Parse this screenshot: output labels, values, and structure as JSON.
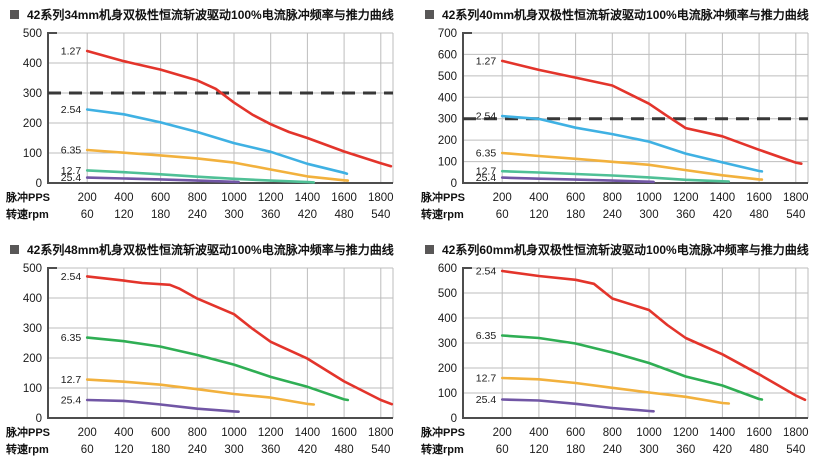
{
  "x_axis": {
    "row1_label": "脉冲PPS",
    "row2_label": "转速rpm",
    "pps_ticks": [
      200,
      400,
      600,
      800,
      1000,
      1200,
      1400,
      1600,
      1800
    ],
    "rpm_ticks": [
      60,
      120,
      180,
      240,
      300,
      360,
      420,
      480,
      540
    ]
  },
  "style": {
    "background": "#ffffff",
    "grid_color": "#bdbdbd",
    "axis_color": "#4d4d4d",
    "dashed_color": "#383838",
    "text_color": "#1a1a1a",
    "bullet_color": "#595757",
    "red": "#e3342b",
    "blue": "#3fb1e3",
    "yellow": "#f2b13d",
    "teal": "#4fc096",
    "green": "#2fae54",
    "purple": "#7156a5"
  },
  "chart_data": [
    {
      "type": "line",
      "title": "42系列34mm机身双极性恒流斩波驱动100%电流脉冲频率与推力曲线",
      "ylim": [
        0,
        500
      ],
      "ytick_step": 100,
      "rated_line_y": 300,
      "grid": "on",
      "series": [
        {
          "name": "1.27",
          "color": "#e3342b",
          "x": [
            200,
            400,
            600,
            800,
            900,
            1000,
            1100,
            1200,
            1300,
            1400,
            1600,
            1800,
            1855
          ],
          "y": [
            440,
            406,
            378,
            342,
            314,
            268,
            228,
            196,
            170,
            150,
            105,
            66,
            56
          ]
        },
        {
          "name": "2.54",
          "color": "#3fb1e3",
          "x": [
            200,
            400,
            600,
            800,
            1000,
            1200,
            1400,
            1600,
            1615
          ],
          "y": [
            245,
            229,
            202,
            170,
            133,
            104,
            64,
            34,
            31
          ]
        },
        {
          "name": "6.35",
          "color": "#f2b13d",
          "x": [
            200,
            400,
            600,
            800,
            1000,
            1200,
            1400,
            1600,
            1620
          ],
          "y": [
            110,
            101,
            92,
            82,
            68,
            45,
            22,
            9,
            8
          ]
        },
        {
          "name": "12.7",
          "color": "#4fc096",
          "x": [
            200,
            400,
            600,
            800,
            1000,
            1200,
            1400,
            1435
          ],
          "y": [
            42,
            36,
            29,
            21,
            14,
            8,
            3,
            2
          ]
        },
        {
          "name": "25.4",
          "color": "#7156a5",
          "x": [
            200,
            400,
            600,
            800,
            1000,
            1025
          ],
          "y": [
            18,
            15,
            12,
            8,
            4,
            3
          ]
        }
      ]
    },
    {
      "type": "line",
      "title": "42系列40mm机身双极性恒流斩波驱动100%电流脉冲频率与推力曲线",
      "ylim": [
        0,
        700
      ],
      "ytick_step": 100,
      "rated_line_y": 300,
      "grid": "on",
      "series": [
        {
          "name": "1.27",
          "color": "#e3342b",
          "x": [
            200,
            400,
            600,
            800,
            1000,
            1100,
            1200,
            1400,
            1600,
            1800,
            1830
          ],
          "y": [
            570,
            528,
            492,
            455,
            370,
            312,
            256,
            218,
            155,
            95,
            90
          ]
        },
        {
          "name": "2.54",
          "color": "#3fb1e3",
          "x": [
            200,
            400,
            600,
            800,
            1000,
            1200,
            1400,
            1600,
            1615
          ],
          "y": [
            312,
            299,
            258,
            228,
            193,
            137,
            96,
            56,
            54
          ]
        },
        {
          "name": "6.35",
          "color": "#f2b13d",
          "x": [
            200,
            400,
            600,
            800,
            1000,
            1200,
            1400,
            1600,
            1615
          ],
          "y": [
            140,
            126,
            113,
            99,
            85,
            60,
            36,
            17,
            16
          ]
        },
        {
          "name": "12.7",
          "color": "#4fc096",
          "x": [
            200,
            400,
            600,
            800,
            1000,
            1200,
            1400,
            1435
          ],
          "y": [
            55,
            49,
            42,
            35,
            26,
            15,
            8,
            7
          ]
        },
        {
          "name": "25.4",
          "color": "#7156a5",
          "x": [
            200,
            400,
            600,
            800,
            1000,
            1025
          ],
          "y": [
            25,
            20,
            16,
            11,
            6,
            5
          ]
        }
      ]
    },
    {
      "type": "line",
      "title": "42系列48mm机身双极性恒流斩波驱动100%电流脉冲频率与推力曲线",
      "ylim": [
        0,
        500
      ],
      "ytick_step": 100,
      "rated_line_y": null,
      "grid": "on",
      "series": [
        {
          "name": "2.54",
          "color": "#e3342b",
          "x": [
            200,
            400,
            500,
            650,
            700,
            800,
            1000,
            1100,
            1200,
            1400,
            1600,
            1800,
            1860
          ],
          "y": [
            472,
            458,
            450,
            444,
            432,
            398,
            346,
            298,
            254,
            198,
            122,
            60,
            46
          ]
        },
        {
          "name": "6.35",
          "color": "#2fae54",
          "x": [
            200,
            400,
            600,
            800,
            1000,
            1200,
            1400,
            1600,
            1620
          ],
          "y": [
            268,
            256,
            238,
            210,
            178,
            137,
            104,
            62,
            60
          ]
        },
        {
          "name": "12.7",
          "color": "#f2b13d",
          "x": [
            200,
            400,
            600,
            800,
            1000,
            1200,
            1400,
            1435
          ],
          "y": [
            128,
            121,
            111,
            96,
            80,
            68,
            47,
            45
          ]
        },
        {
          "name": "25.4",
          "color": "#7156a5",
          "x": [
            200,
            400,
            600,
            800,
            1000,
            1025
          ],
          "y": [
            60,
            57,
            45,
            31,
            22,
            21
          ]
        }
      ]
    },
    {
      "type": "line",
      "title": "42系列60mm机身双极性恒流斩波驱动100%电流脉冲频率与推力曲线",
      "ylim": [
        0,
        600
      ],
      "ytick_step": 100,
      "rated_line_y": null,
      "grid": "on",
      "series": [
        {
          "name": "2.54",
          "color": "#e3342b",
          "x": [
            200,
            400,
            600,
            700,
            800,
            1000,
            1100,
            1200,
            1400,
            1600,
            1800,
            1850
          ],
          "y": [
            588,
            568,
            553,
            537,
            478,
            432,
            372,
            320,
            255,
            175,
            90,
            73
          ]
        },
        {
          "name": "6.35",
          "color": "#2fae54",
          "x": [
            200,
            400,
            600,
            800,
            1000,
            1200,
            1400,
            1600,
            1615
          ],
          "y": [
            330,
            320,
            298,
            262,
            220,
            166,
            130,
            76,
            74
          ]
        },
        {
          "name": "12.7",
          "color": "#f2b13d",
          "x": [
            200,
            400,
            600,
            800,
            1000,
            1200,
            1400,
            1435
          ],
          "y": [
            160,
            155,
            140,
            121,
            102,
            85,
            60,
            58
          ]
        },
        {
          "name": "25.4",
          "color": "#7156a5",
          "x": [
            200,
            400,
            600,
            800,
            1000,
            1025
          ],
          "y": [
            74,
            70,
            57,
            40,
            28,
            27
          ]
        }
      ]
    }
  ]
}
